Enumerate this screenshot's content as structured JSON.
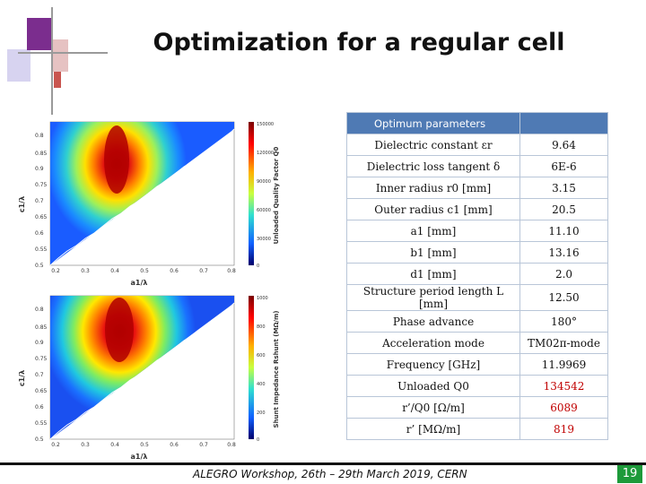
{
  "title": "Optimization for a regular cell",
  "table": {
    "header": "Optimum parameters",
    "rows": [
      {
        "label": "Dielectric constant εr",
        "value": "9.64",
        "highlight": false
      },
      {
        "label": "Dielectric loss tangent δ",
        "value": "6E-6",
        "highlight": false
      },
      {
        "label": "Inner radius r0 [mm]",
        "value": "3.15",
        "highlight": false
      },
      {
        "label": "Outer radius c1 [mm]",
        "value": "20.5",
        "highlight": false
      },
      {
        "label": "a1 [mm]",
        "value": "11.10",
        "highlight": false
      },
      {
        "label": "b1 [mm]",
        "value": "13.16",
        "highlight": false
      },
      {
        "label": "d1 [mm]",
        "value": "2.0",
        "highlight": false
      },
      {
        "label": "Structure period length L [mm]",
        "value": "12.50",
        "highlight": false
      },
      {
        "label": "Phase advance",
        "value": "180°",
        "highlight": false
      },
      {
        "label": "Acceleration mode",
        "value": "TM02π-mode",
        "highlight": false
      },
      {
        "label": "Frequency [GHz]",
        "value": "11.9969",
        "highlight": false
      },
      {
        "label": "Unloaded Q0",
        "value": "134542",
        "highlight": true
      },
      {
        "label": "r’/Q0 [Ω/m]",
        "value": "6089",
        "highlight": true
      },
      {
        "label": "r’ [MΩ/m]",
        "value": "819",
        "highlight": true
      }
    ]
  },
  "plots": {
    "top": {
      "xlabel": "a1/λ",
      "ylabel": "c1/λ",
      "colorbar_label": "Unloaded Quality Factor Q0",
      "xticks": [
        "0.2",
        "0.3",
        "0.4",
        "0.5",
        "0.6",
        "0.7",
        "0.8"
      ],
      "yticks": [
        "0.8",
        "0.85",
        "0.9",
        "0.75",
        "0.7",
        "0.65",
        "0.6",
        "0.55",
        "0.5"
      ],
      "cbticks": [
        "150000",
        "120000",
        "90000",
        "60000",
        "30000",
        "0"
      ]
    },
    "bottom": {
      "xlabel": "a1/λ",
      "ylabel": "c1/λ",
      "colorbar_label": "Shunt Impedance Rshunt (MΩ/m)",
      "xticks": [
        "0.2",
        "0.3",
        "0.4",
        "0.5",
        "0.6",
        "0.7",
        "0.8"
      ],
      "yticks": [
        "0.8",
        "0.85",
        "0.9",
        "0.75",
        "0.7",
        "0.65",
        "0.6",
        "0.55",
        "0.5"
      ],
      "cbticks": [
        "1000",
        "800",
        "600",
        "400",
        "200",
        "0"
      ]
    }
  },
  "footer": "ALEGRO Workshop, 26th – 29th March 2019, CERN",
  "page_number": "19"
}
